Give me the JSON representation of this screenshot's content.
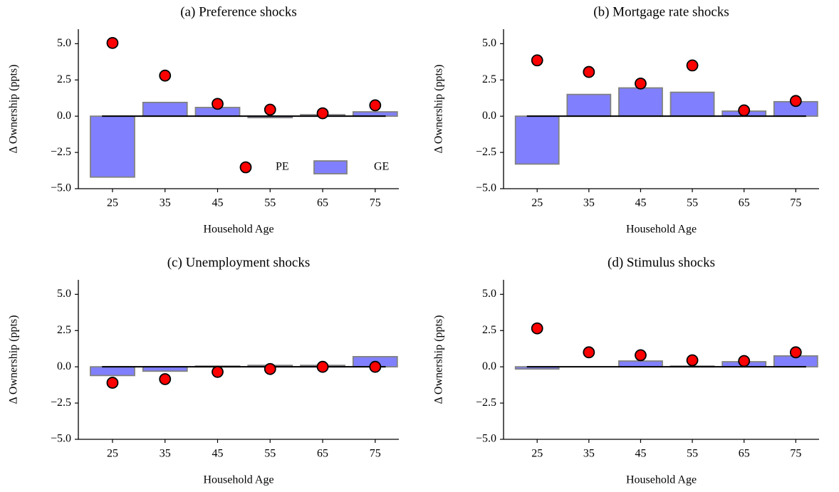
{
  "chart_data": [
    {
      "type": "bar",
      "title": "(a) Preference shocks",
      "xlabel": "Household Age",
      "ylabel": "Δ Ownership (ppts)",
      "x": [
        25,
        35,
        45,
        55,
        65,
        75
      ],
      "xlim": [
        18.5,
        79.5
      ],
      "xticks": [
        25,
        35,
        45,
        55,
        65,
        75
      ],
      "ylim": [
        -5,
        6
      ],
      "yticks": [
        {
          "value": -5,
          "label": "−5.0"
        },
        {
          "value": -2.5,
          "label": "−2.5"
        },
        {
          "value": 0,
          "label": "0.0"
        },
        {
          "value": 2.5,
          "label": "2.5"
        },
        {
          "value": 5,
          "label": "5.0"
        }
      ],
      "legend": "lower right",
      "series": [
        {
          "name": "PE",
          "type": "scatter",
          "color": "#ff0000",
          "values": [
            5.05,
            2.8,
            0.85,
            0.45,
            0.2,
            0.75
          ]
        },
        {
          "name": "GE",
          "type": "bar",
          "color": "#8080ff",
          "values": [
            -4.2,
            0.95,
            0.6,
            -0.1,
            0.1,
            0.3
          ]
        }
      ]
    },
    {
      "type": "bar",
      "title": "(b) Mortgage rate shocks",
      "xlabel": "Household Age",
      "ylabel": "Δ Ownership (ppts)",
      "x": [
        25,
        35,
        45,
        55,
        65,
        75
      ],
      "xlim": [
        18.5,
        79.5
      ],
      "xticks": [
        25,
        35,
        45,
        55,
        65,
        75
      ],
      "ylim": [
        -5,
        6
      ],
      "yticks": [
        {
          "value": -5,
          "label": "−5.0"
        },
        {
          "value": -2.5,
          "label": "−2.5"
        },
        {
          "value": 0,
          "label": "0.0"
        },
        {
          "value": 2.5,
          "label": "2.5"
        },
        {
          "value": 5,
          "label": "5.0"
        }
      ],
      "series": [
        {
          "type": "scatter",
          "color": "#ff0000",
          "values": [
            3.85,
            3.05,
            2.25,
            3.5,
            0.4,
            1.05
          ]
        },
        {
          "type": "bar",
          "color": "#8080ff",
          "values": [
            -3.3,
            1.5,
            1.95,
            1.65,
            0.35,
            1.0
          ]
        }
      ]
    },
    {
      "type": "bar",
      "title": "(c) Unemployment shocks",
      "xlabel": "Household Age",
      "ylabel": "Δ Ownership (ppts)",
      "x": [
        25,
        35,
        45,
        55,
        65,
        75
      ],
      "xlim": [
        18.5,
        79.5
      ],
      "xticks": [
        25,
        35,
        45,
        55,
        65,
        75
      ],
      "ylim": [
        -5,
        6
      ],
      "yticks": [
        {
          "value": -5,
          "label": "−5.0"
        },
        {
          "value": -2.5,
          "label": "−2.5"
        },
        {
          "value": 0,
          "label": "0.0"
        },
        {
          "value": 2.5,
          "label": "2.5"
        },
        {
          "value": 5,
          "label": "5.0"
        }
      ],
      "series": [
        {
          "type": "scatter",
          "color": "#ff0000",
          "values": [
            -1.1,
            -0.85,
            -0.35,
            -0.15,
            0.0,
            0.0
          ]
        },
        {
          "type": "bar",
          "color": "#8080ff",
          "values": [
            -0.6,
            -0.3,
            0.05,
            0.1,
            0.1,
            0.7
          ]
        }
      ]
    },
    {
      "type": "bar",
      "title": "(d) Stimulus shocks",
      "xlabel": "Household Age",
      "ylabel": "Δ Ownership (ppts)",
      "x": [
        25,
        35,
        45,
        55,
        65,
        75
      ],
      "xlim": [
        18.5,
        79.5
      ],
      "xticks": [
        25,
        35,
        45,
        55,
        65,
        75
      ],
      "ylim": [
        -5,
        6
      ],
      "yticks": [
        {
          "value": -5,
          "label": "−5.0"
        },
        {
          "value": -2.5,
          "label": "−2.5"
        },
        {
          "value": 0,
          "label": "0.0"
        },
        {
          "value": 2.5,
          "label": "2.5"
        },
        {
          "value": 5,
          "label": "5.0"
        }
      ],
      "series": [
        {
          "type": "scatter",
          "color": "#ff0000",
          "values": [
            2.65,
            1.0,
            0.8,
            0.45,
            0.4,
            1.0
          ]
        },
        {
          "type": "bar",
          "color": "#8080ff",
          "values": [
            -0.15,
            0.0,
            0.4,
            0.05,
            0.35,
            0.75
          ]
        }
      ]
    }
  ]
}
